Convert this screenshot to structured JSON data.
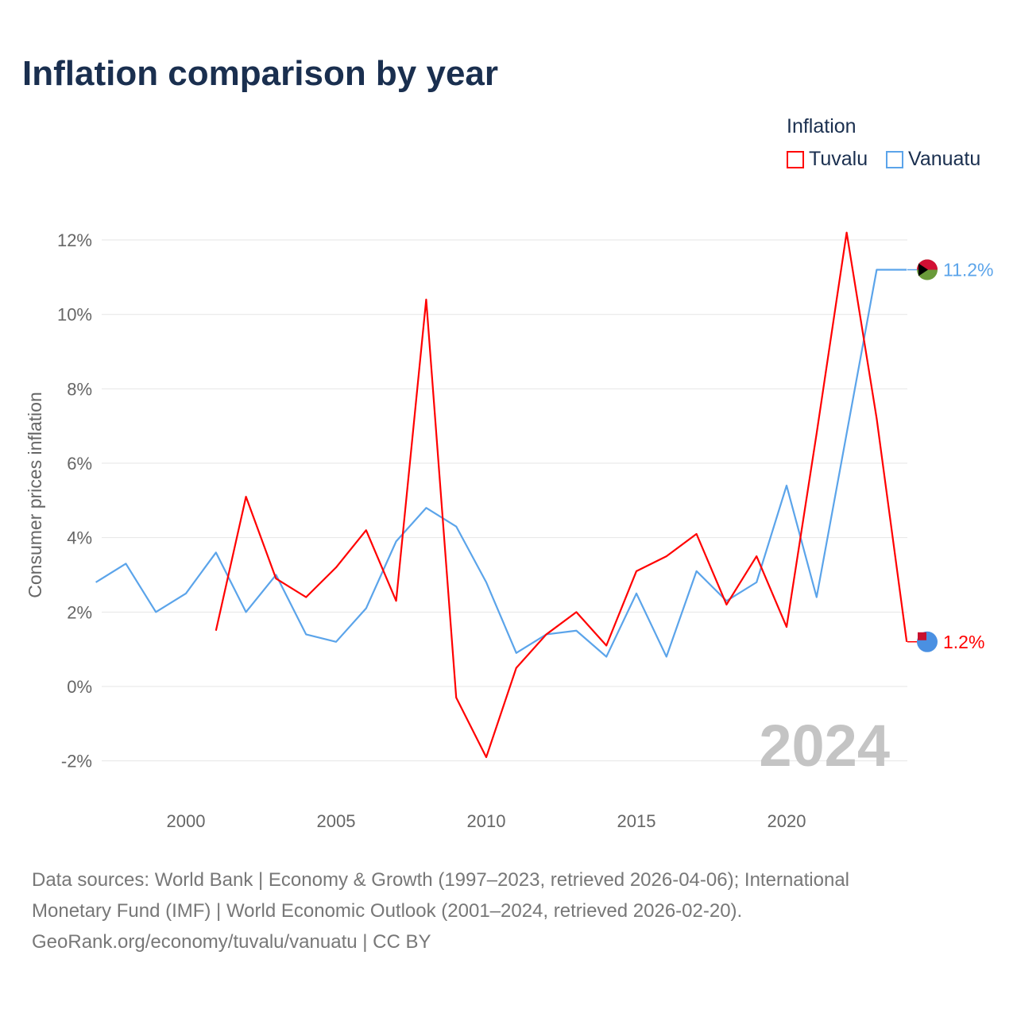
{
  "chart_data": {
    "type": "line",
    "title": "Inflation comparison by year",
    "legend_title": "Inflation",
    "ylabel": "Consumer prices inflation",
    "xlabel": "",
    "xlim": [
      1997,
      2024
    ],
    "ylim": [
      -3,
      13
    ],
    "yticks": [
      -2,
      0,
      2,
      4,
      6,
      8,
      10,
      12
    ],
    "ytick_labels": [
      "-2%",
      "0%",
      "2%",
      "4%",
      "6%",
      "8%",
      "10%",
      "12%"
    ],
    "xticks": [
      2000,
      2005,
      2010,
      2015,
      2020
    ],
    "xtick_labels": [
      "2000",
      "2005",
      "2010",
      "2015",
      "2020"
    ],
    "year_watermark": "2024",
    "legend_position": "top-right",
    "series": [
      {
        "name": "Tuvalu",
        "color": "#ff0000",
        "end_label": "1.2%",
        "x": [
          2001,
          2002,
          2003,
          2004,
          2005,
          2006,
          2007,
          2008,
          2009,
          2010,
          2011,
          2012,
          2013,
          2014,
          2015,
          2016,
          2017,
          2018,
          2019,
          2020,
          2021,
          2022,
          2023,
          2024
        ],
        "values": [
          1.5,
          5.1,
          2.9,
          2.4,
          3.2,
          4.2,
          2.3,
          10.4,
          -0.3,
          -1.9,
          0.5,
          1.4,
          2.0,
          1.1,
          3.1,
          3.5,
          4.1,
          2.2,
          3.5,
          1.6,
          6.8,
          12.2,
          7.2,
          1.2
        ]
      },
      {
        "name": "Vanuatu",
        "color": "#5ba4ea",
        "end_label": "11.2%",
        "x": [
          1997,
          1998,
          1999,
          2000,
          2001,
          2002,
          2003,
          2004,
          2005,
          2006,
          2007,
          2008,
          2009,
          2010,
          2011,
          2012,
          2013,
          2014,
          2015,
          2016,
          2017,
          2018,
          2019,
          2020,
          2021,
          2022,
          2023,
          2024
        ],
        "values": [
          2.8,
          3.3,
          2.0,
          2.5,
          3.6,
          2.0,
          3.0,
          1.4,
          1.2,
          2.1,
          3.9,
          4.8,
          4.3,
          2.8,
          0.9,
          1.4,
          1.5,
          0.8,
          2.5,
          0.8,
          3.1,
          2.3,
          2.8,
          5.4,
          2.4,
          6.8,
          11.2,
          11.2
        ]
      }
    ]
  },
  "footer": {
    "line1": "Data sources: World Bank | Economy & Growth (1997–2023, retrieved 2026-04-06); International",
    "line2": "Monetary Fund (IMF) | World Economic Outlook (2001–2024, retrieved 2026-02-20).",
    "line3": "GeoRank.org/economy/tuvalu/vanuatu | CC BY"
  }
}
